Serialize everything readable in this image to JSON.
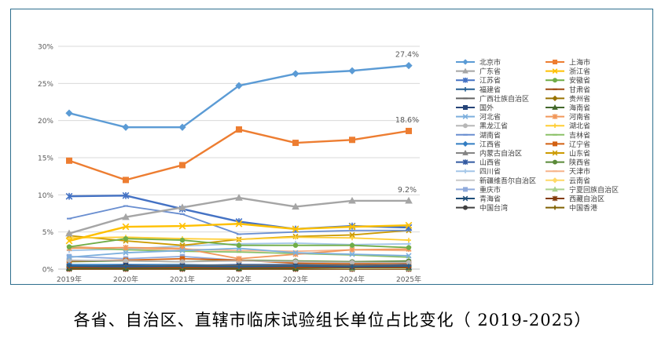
{
  "caption": "各省、自治区、直辖市临床试验组长单位占比变化（ 2019-2025）",
  "chart_data": {
    "type": "line",
    "x": [
      "2019年",
      "2020年",
      "2021年",
      "2022年",
      "2023年",
      "2024年",
      "2025年"
    ],
    "y_ticks": [
      "0%",
      "5%",
      "10%",
      "15%",
      "20%",
      "25%",
      "30%"
    ],
    "ylim": [
      0,
      30
    ],
    "grid": true,
    "legend_position": "right",
    "annotations": [
      {
        "series": "北京市",
        "x": "2025年",
        "text": "27.4%"
      },
      {
        "series": "上海市",
        "x": "2025年",
        "text": "18.6%"
      },
      {
        "series": "广东省",
        "x": "2025年",
        "text": "9.2%"
      }
    ],
    "series": [
      {
        "name": "北京市",
        "color": "#5b9bd5",
        "marker": "diamond",
        "values": [
          21.0,
          19.1,
          19.1,
          24.7,
          26.3,
          26.7,
          27.4
        ]
      },
      {
        "name": "上海市",
        "color": "#ed7d31",
        "marker": "square",
        "values": [
          14.6,
          12.0,
          14.0,
          18.8,
          17.0,
          17.4,
          18.6
        ]
      },
      {
        "name": "广东省",
        "color": "#a5a5a5",
        "marker": "triangle",
        "values": [
          4.8,
          7.0,
          8.3,
          9.6,
          8.4,
          9.2,
          9.2
        ]
      },
      {
        "name": "浙江省",
        "color": "#ffc000",
        "marker": "x",
        "values": [
          3.8,
          5.7,
          5.8,
          6.1,
          5.4,
          5.7,
          5.9
        ]
      },
      {
        "name": "江苏省",
        "color": "#4472c4",
        "marker": "star",
        "values": [
          9.8,
          9.9,
          8.1,
          6.4,
          5.4,
          5.8,
          5.6
        ]
      },
      {
        "name": "安徽省",
        "color": "#70ad47",
        "marker": "circle",
        "values": [
          3.0,
          4.1,
          3.9,
          3.2,
          3.2,
          3.2,
          2.9
        ]
      },
      {
        "name": "福建省",
        "color": "#255e91",
        "marker": "plus",
        "values": [
          0.4,
          0.3,
          0.4,
          0.3,
          0.4,
          0.3,
          0.4
        ]
      },
      {
        "name": "甘肃省",
        "color": "#9e480e",
        "marker": "dash",
        "values": [
          0.2,
          0.2,
          0.2,
          0.2,
          0.2,
          0.2,
          0.2
        ]
      },
      {
        "name": "广西壮族自治区",
        "color": "#636363",
        "marker": "dash",
        "values": [
          0.4,
          0.4,
          0.5,
          0.5,
          0.5,
          0.5,
          0.5
        ]
      },
      {
        "name": "贵州省",
        "color": "#997300",
        "marker": "diamond",
        "values": [
          0.3,
          0.3,
          0.3,
          0.3,
          0.3,
          0.3,
          0.3
        ]
      },
      {
        "name": "国外",
        "color": "#264478",
        "marker": "square",
        "values": [
          0.3,
          0.5,
          0.4,
          0.4,
          0.4,
          0.3,
          0.3
        ]
      },
      {
        "name": "海南省",
        "color": "#43682b",
        "marker": "triangle",
        "values": [
          0.1,
          0.1,
          0.1,
          0.1,
          0.1,
          0.2,
          0.2
        ]
      },
      {
        "name": "河北省",
        "color": "#7cafdd",
        "marker": "x",
        "values": [
          1.6,
          2.2,
          2.5,
          2.8,
          2.2,
          2.0,
          1.8
        ]
      },
      {
        "name": "河南省",
        "color": "#f1975a",
        "marker": "star",
        "values": [
          2.8,
          2.9,
          2.8,
          1.4,
          2.0,
          2.6,
          2.7
        ]
      },
      {
        "name": "黑龙江省",
        "color": "#b7b7b7",
        "marker": "circle",
        "values": [
          1.2,
          1.1,
          1.0,
          1.1,
          1.0,
          0.9,
          0.9
        ]
      },
      {
        "name": "湖北省",
        "color": "#ffcd33",
        "marker": "plus",
        "values": [
          4.2,
          4.3,
          4.1,
          4.0,
          4.3,
          4.2,
          3.9
        ]
      },
      {
        "name": "湖南省",
        "color": "#698ed0",
        "marker": "dash",
        "values": [
          6.8,
          8.5,
          7.4,
          4.7,
          5.0,
          5.2,
          5.2
        ]
      },
      {
        "name": "吉林省",
        "color": "#8cc168",
        "marker": "dash",
        "values": [
          2.9,
          2.6,
          2.4,
          2.3,
          2.1,
          1.9,
          1.6
        ]
      },
      {
        "name": "江西省",
        "color": "#327dc2",
        "marker": "diamond",
        "values": [
          0.6,
          0.6,
          0.6,
          0.5,
          0.5,
          0.5,
          0.5
        ]
      },
      {
        "name": "辽宁省",
        "color": "#d26012",
        "marker": "square",
        "values": [
          1.1,
          1.2,
          1.4,
          1.2,
          0.8,
          0.7,
          0.8
        ]
      },
      {
        "name": "内蒙古自治区",
        "color": "#848484",
        "marker": "triangle",
        "values": [
          0.2,
          0.2,
          0.2,
          0.2,
          0.2,
          0.2,
          0.2
        ]
      },
      {
        "name": "山东省",
        "color": "#cc9a00",
        "marker": "x",
        "values": [
          4.5,
          3.8,
          3.2,
          4.0,
          4.4,
          4.6,
          5.2
        ]
      },
      {
        "name": "山西省",
        "color": "#335aa1",
        "marker": "star",
        "values": [
          0.5,
          0.6,
          0.5,
          0.6,
          0.6,
          0.5,
          0.6
        ]
      },
      {
        "name": "陕西省",
        "color": "#5a8a39",
        "marker": "circle",
        "values": [
          1.0,
          1.1,
          1.0,
          1.2,
          1.1,
          1.0,
          1.1
        ]
      },
      {
        "name": "四川省",
        "color": "#a3c6e8",
        "marker": "plus",
        "values": [
          2.5,
          2.7,
          3.1,
          3.4,
          3.5,
          3.3,
          3.4
        ]
      },
      {
        "name": "天津市",
        "color": "#f6b48a",
        "marker": "dash",
        "values": [
          3.1,
          2.6,
          2.7,
          2.5,
          2.4,
          2.6,
          2.5
        ]
      },
      {
        "name": "新疆维吾尔自治区",
        "color": "#c9c9c9",
        "marker": "dash",
        "values": [
          0.2,
          0.2,
          0.2,
          0.2,
          0.2,
          0.2,
          0.2
        ]
      },
      {
        "name": "云南省",
        "color": "#ffd966",
        "marker": "diamond",
        "values": [
          0.5,
          0.4,
          0.5,
          0.5,
          0.4,
          0.4,
          0.4
        ]
      },
      {
        "name": "重庆市",
        "color": "#8faadc",
        "marker": "square",
        "values": [
          1.7,
          1.4,
          1.7,
          1.2,
          1.0,
          0.9,
          1.0
        ]
      },
      {
        "name": "宁夏回族自治区",
        "color": "#a9d18e",
        "marker": "triangle",
        "values": [
          0.1,
          0.1,
          0.1,
          0.1,
          0.1,
          0.1,
          0.1
        ]
      },
      {
        "name": "青海省",
        "color": "#1f4e79",
        "marker": "x",
        "values": [
          0.1,
          0.1,
          0.1,
          0.1,
          0.1,
          0.1,
          0.1
        ]
      },
      {
        "name": "西藏自治区",
        "color": "#843c0c",
        "marker": "star",
        "values": [
          0.0,
          0.0,
          0.0,
          0.0,
          0.0,
          0.0,
          0.0
        ]
      },
      {
        "name": "中国台湾",
        "color": "#404040",
        "marker": "circle",
        "values": [
          0.1,
          0.1,
          0.1,
          0.1,
          0.1,
          0.1,
          0.1
        ]
      },
      {
        "name": "中国香港",
        "color": "#7f6000",
        "marker": "plus",
        "values": [
          0.2,
          0.2,
          0.3,
          0.2,
          0.2,
          0.3,
          0.3
        ]
      }
    ]
  }
}
